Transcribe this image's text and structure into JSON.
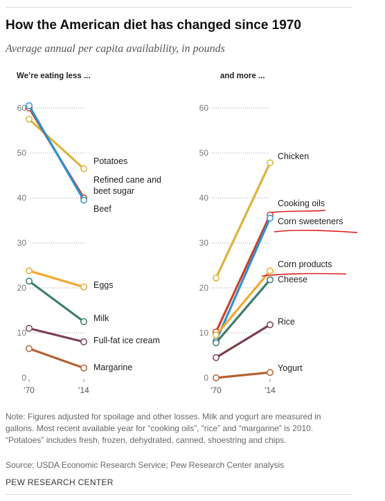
{
  "header": {
    "title": "How the American diet has changed since 1970",
    "subtitle": "Average annual per capita availability, in pounds"
  },
  "footer": {
    "note": "Note: Figures adjusted for spoilage and other losses. Milk and yogurt are measured in gallons. Most recent available year for “cooking oils”, “rice” and “margarine” is 2010. “Potatoes” includes fresh, frozen, dehydrated, canned, shoestring and chips.",
    "source": "Source: USDA Economic Research Service; Pew Research Center analysis",
    "credit": "PEW RESEARCH CENTER"
  },
  "chart_data": [
    {
      "type": "line",
      "panel_title": "We’re eating less  ...",
      "x": [
        "'70",
        "'14"
      ],
      "ylim": [
        0,
        60
      ],
      "yticks": [
        0,
        10,
        20,
        30,
        40,
        50,
        60
      ],
      "series": [
        {
          "name": "Potatoes",
          "values": [
            57.5,
            46.5
          ],
          "color": "#ddb23a"
        },
        {
          "name": "Refined cane and beet sugar",
          "values": [
            60,
            40
          ],
          "color": "#c8432d"
        },
        {
          "name": "Beef",
          "values": [
            60.5,
            39.5
          ],
          "color": "#2e93cf"
        },
        {
          "name": "Eggs",
          "values": [
            23.8,
            20.2
          ],
          "color": "#f0a830"
        },
        {
          "name": "Milk",
          "values": [
            21.5,
            12.5
          ],
          "color": "#3d7d6e"
        },
        {
          "name": "Full-fat ice cream",
          "values": [
            11,
            8
          ],
          "color": "#7b3f4d"
        },
        {
          "name": "Margarine",
          "values": [
            6.5,
            2.2
          ],
          "color": "#b5612d"
        }
      ]
    },
    {
      "type": "line",
      "panel_title": "and more ...",
      "x": [
        "'70",
        "'14"
      ],
      "ylim": [
        0,
        60
      ],
      "yticks": [
        0,
        10,
        20,
        30,
        40,
        50,
        60
      ],
      "series": [
        {
          "name": "Chicken",
          "values": [
            22.2,
            47.8
          ],
          "color": "#ddb23a"
        },
        {
          "name": "Cooking oils",
          "values": [
            10.2,
            36.2
          ],
          "color": "#c8432d"
        },
        {
          "name": "Corn sweeteners",
          "values": [
            8.2,
            35.5
          ],
          "color": "#2e93cf"
        },
        {
          "name": "Corn products",
          "values": [
            9.5,
            23.8
          ],
          "color": "#f0a830"
        },
        {
          "name": "Cheese",
          "values": [
            7.8,
            21.8
          ],
          "color": "#3d7d6e"
        },
        {
          "name": "Rice",
          "values": [
            4.5,
            11.8
          ],
          "color": "#7b3f4d"
        },
        {
          "name": "Yogurt",
          "values": [
            0,
            1.2
          ],
          "color": "#b5612d"
        }
      ]
    }
  ]
}
